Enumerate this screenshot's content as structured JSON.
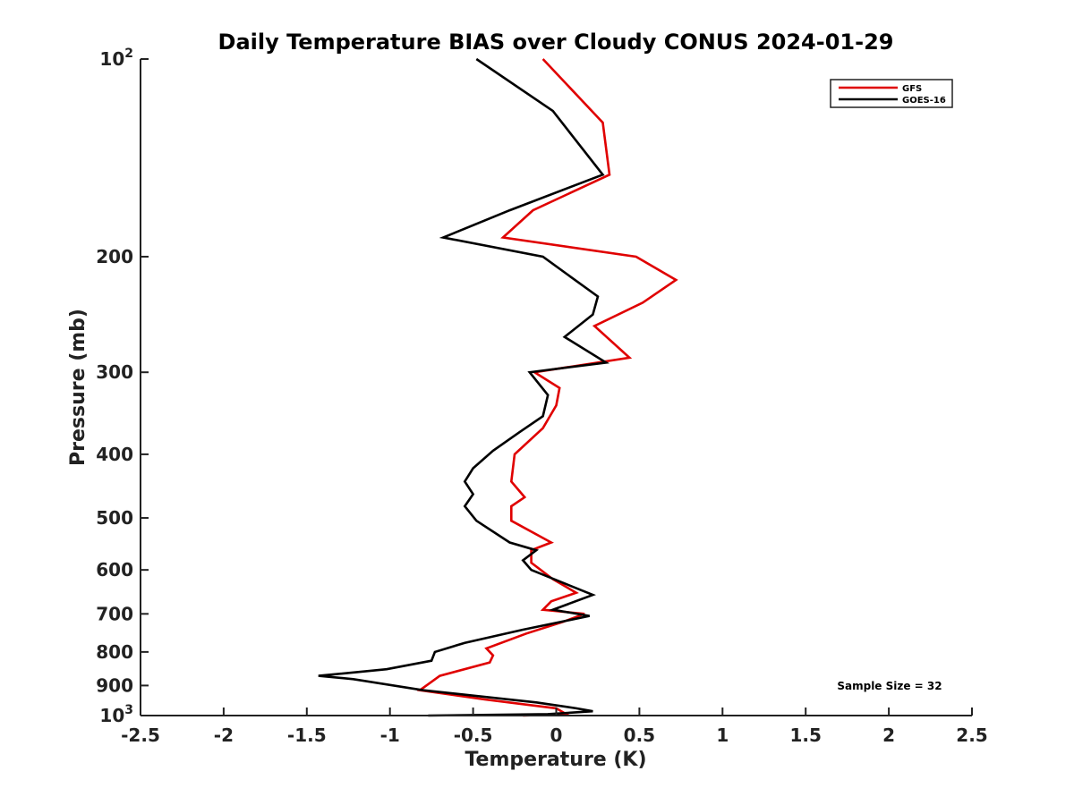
{
  "chart_data": {
    "type": "line",
    "title": "Daily Temperature BIAS over Cloudy CONUS 2024-01-29",
    "xlabel": "Temperature (K)",
    "ylabel": "Pressure (mb)",
    "xlim": [
      -2.5,
      2.5
    ],
    "ylim": [
      1000,
      100
    ],
    "yscale": "log",
    "y_reversed": true,
    "grid": false,
    "legend_position": "top-right",
    "x_ticks": [
      -2.5,
      -2,
      -1.5,
      -1,
      -0.5,
      0,
      0.5,
      1,
      1.5,
      2,
      2.5
    ],
    "x_tick_labels": [
      "-2.5",
      "-2",
      "-1.5",
      "-1",
      "-0.5",
      "0",
      "0.5",
      "1",
      "1.5",
      "2",
      "2.5"
    ],
    "y_ticks": [
      100,
      200,
      300,
      400,
      500,
      600,
      700,
      800,
      900,
      1000
    ],
    "y_tick_labels": [
      "10^2",
      "200",
      "300",
      "400",
      "500",
      "600",
      "700",
      "800",
      "900",
      "10^3"
    ],
    "annotation": "Sample Size = 32",
    "series": [
      {
        "name": "GFS",
        "color": "#e00000",
        "points": [
          [
            -0.08,
            100
          ],
          [
            0.28,
            125
          ],
          [
            0.32,
            150
          ],
          [
            -0.14,
            170
          ],
          [
            -0.32,
            187
          ],
          [
            0.48,
            200
          ],
          [
            0.72,
            217
          ],
          [
            0.52,
            235
          ],
          [
            0.23,
            255
          ],
          [
            0.44,
            285
          ],
          [
            -0.13,
            300
          ],
          [
            0.02,
            317
          ],
          [
            0.0,
            337
          ],
          [
            -0.08,
            365
          ],
          [
            -0.25,
            400
          ],
          [
            -0.27,
            440
          ],
          [
            -0.19,
            465
          ],
          [
            -0.27,
            480
          ],
          [
            -0.27,
            505
          ],
          [
            -0.03,
            545
          ],
          [
            -0.15,
            560
          ],
          [
            -0.15,
            585
          ],
          [
            -0.02,
            620
          ],
          [
            0.12,
            650
          ],
          [
            -0.03,
            670
          ],
          [
            -0.08,
            690
          ],
          [
            0.17,
            700
          ],
          [
            0.04,
            720
          ],
          [
            -0.18,
            750
          ],
          [
            -0.42,
            790
          ],
          [
            -0.38,
            810
          ],
          [
            -0.4,
            830
          ],
          [
            -0.7,
            870
          ],
          [
            -0.82,
            915
          ],
          [
            -0.43,
            945
          ],
          [
            0.0,
            975
          ],
          [
            0.06,
            995
          ],
          [
            -0.2,
            1000
          ]
        ]
      },
      {
        "name": "GOES-16",
        "color": "#000000",
        "points": [
          [
            -0.48,
            100
          ],
          [
            -0.02,
            120
          ],
          [
            0.28,
            150
          ],
          [
            -0.28,
            170
          ],
          [
            -0.68,
            187
          ],
          [
            -0.08,
            200
          ],
          [
            0.25,
            230
          ],
          [
            0.22,
            245
          ],
          [
            0.05,
            265
          ],
          [
            0.3,
            290
          ],
          [
            -0.16,
            300
          ],
          [
            -0.05,
            325
          ],
          [
            -0.08,
            350
          ],
          [
            -0.22,
            370
          ],
          [
            -0.38,
            395
          ],
          [
            -0.5,
            420
          ],
          [
            -0.55,
            440
          ],
          [
            -0.5,
            460
          ],
          [
            -0.55,
            480
          ],
          [
            -0.48,
            505
          ],
          [
            -0.28,
            545
          ],
          [
            -0.12,
            560
          ],
          [
            -0.2,
            580
          ],
          [
            -0.15,
            600
          ],
          [
            0.22,
            655
          ],
          [
            -0.02,
            690
          ],
          [
            0.2,
            705
          ],
          [
            -0.2,
            740
          ],
          [
            -0.55,
            775
          ],
          [
            -0.73,
            800
          ],
          [
            -0.75,
            825
          ],
          [
            -1.02,
            850
          ],
          [
            -1.43,
            870
          ],
          [
            -1.22,
            880
          ],
          [
            -0.8,
            915
          ],
          [
            -0.12,
            955
          ],
          [
            0.12,
            975
          ],
          [
            0.22,
            985
          ],
          [
            -0.05,
            995
          ],
          [
            -0.77,
            1000
          ]
        ]
      }
    ]
  }
}
